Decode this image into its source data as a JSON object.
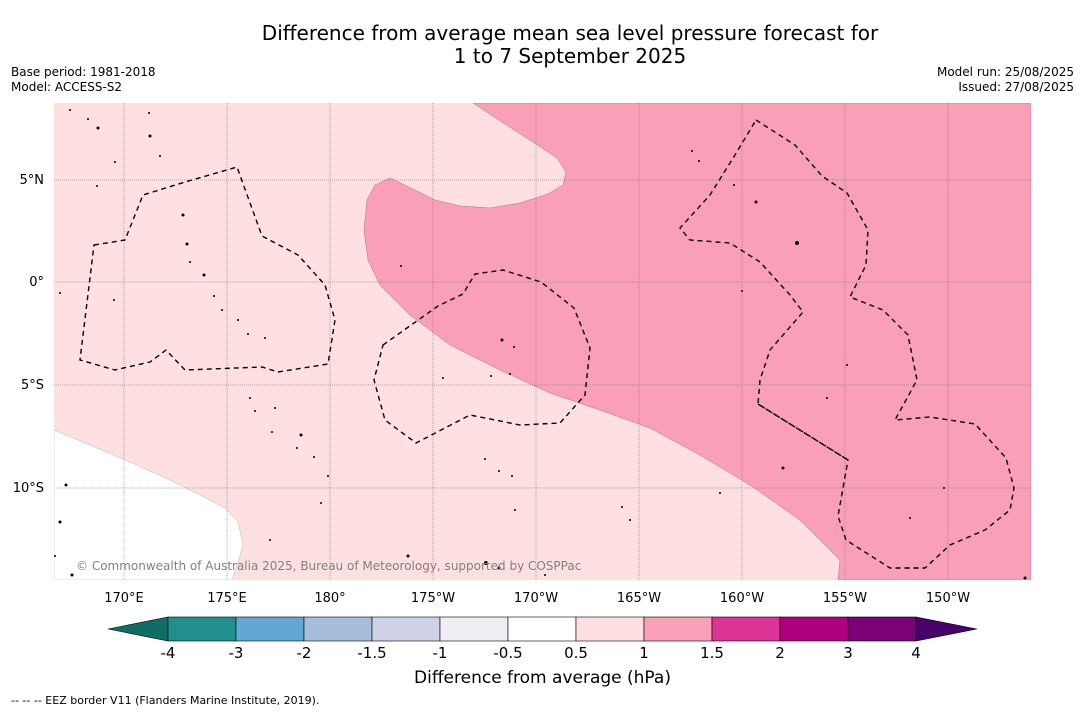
{
  "title": {
    "line1": "Difference from average mean sea level pressure forecast for",
    "line2": "1 to 7 September 2025"
  },
  "meta": {
    "base_period": "Base period: 1981-2018",
    "model": "Model: ACCESS-S2",
    "model_run": "Model run: 25/08/2025",
    "issued": "Issued: 27/08/2025"
  },
  "map": {
    "lat_labels": [
      "5°N",
      "0°",
      "5°S",
      "10°S"
    ],
    "lon_labels": [
      "170°E",
      "175°E",
      "180°",
      "175°W",
      "170°W",
      "165°W",
      "160°W",
      "155°W",
      "150°W"
    ],
    "copyright": "© Commonwealth of Australia 2025, Bureau of Meteorology, supported by COSPPac",
    "grid": true
  },
  "colorbar": {
    "ticks": [
      "-4",
      "-3",
      "-2",
      "-1.5",
      "-1",
      "-0.5",
      "0.5",
      "1",
      "1.5",
      "2",
      "3",
      "4"
    ],
    "colors": [
      "#0f6e63",
      "#21908d",
      "#62a8d2",
      "#a6bddb",
      "#cfd1e6",
      "#efecf2",
      "#ffffff",
      "#fde0df",
      "#f9a0b8",
      "#dd3497",
      "#ae017e",
      "#7a0177",
      "#49006a"
    ],
    "label": "Difference from average (hPa)"
  },
  "legend": {
    "eez": "--  --  -- EEZ border V11 (Flanders Marine Institute, 2019)."
  }
}
